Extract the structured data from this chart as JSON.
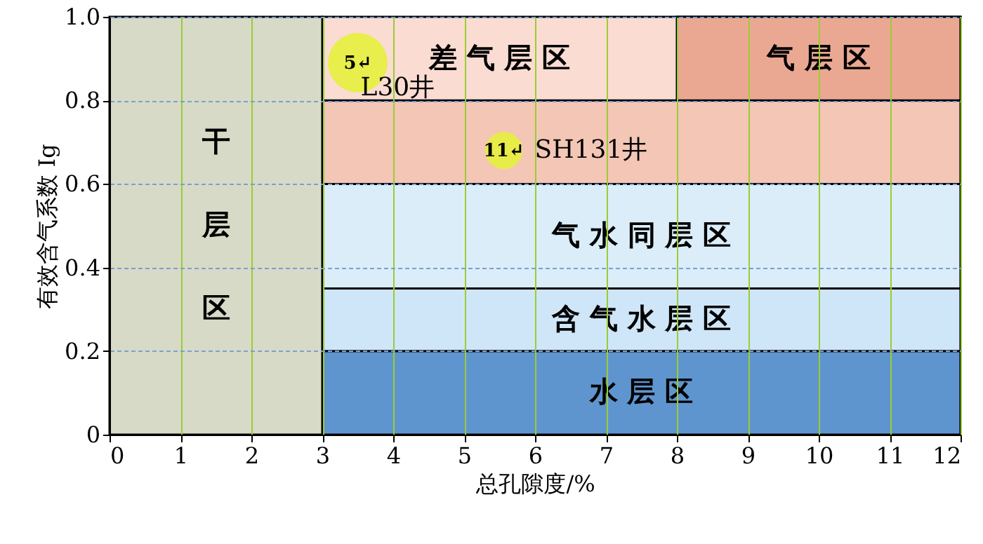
{
  "chart_data": {
    "type": "scatter",
    "xlabel": "总孔隙度/%",
    "ylabel": "有效含气系数 Ig",
    "xlim": [
      0,
      12
    ],
    "xticks": [
      0,
      1,
      2,
      3,
      4,
      5,
      6,
      7,
      8,
      9,
      10,
      11,
      12
    ],
    "ylim": [
      0,
      1.0
    ],
    "yticks": [
      0,
      {
        "value": 0.2,
        "label": "0.2"
      },
      {
        "value": 0.4,
        "label": "0.4"
      },
      {
        "value": 0.6,
        "label": "0.6"
      },
      {
        "value": 0.8,
        "label": "0.8"
      },
      {
        "value": 1.0,
        "label": "1.0"
      }
    ],
    "grid": true,
    "marker": "circle",
    "bands": [
      {
        "axis": "y",
        "from": 0,
        "to": 0.2,
        "label": "水  层  区",
        "color": "#5f95cf"
      },
      {
        "axis": "y",
        "from": 0.2,
        "to": 0.35,
        "label": "含 气 水 层 区",
        "color": "#cfe6f8"
      },
      {
        "axis": "y",
        "from": 0.35,
        "to": 0.6,
        "label": "气 水 同 层 区",
        "color": "#dcedfa"
      },
      {
        "axis": "y",
        "from": 0.6,
        "to": 0.8,
        "color": "#f3c6b6"
      },
      {
        "axis": "y",
        "from": 0.8,
        "to": 1.0,
        "label": "差 气 层 区",
        "color": "#fadcd2"
      },
      {
        "axis": "x",
        "from": 8,
        "to": 12,
        "label": "气 层 区",
        "color": "#eaa892"
      },
      {
        "axis": "x",
        "from": 0,
        "to": 3,
        "label": "干层区",
        "color": "#d7dac6"
      }
    ],
    "series": [
      {
        "name": "L30井",
        "color": "#e6f03c",
        "x": [
          3.5
        ],
        "values": [
          0.89
        ]
      },
      {
        "name": "SH131井",
        "color": "#e6f03c",
        "x": [
          5.56
        ],
        "values": [
          0.68
        ]
      }
    ],
    "annotations": [
      {
        "text": "5↵",
        "x": 3.5,
        "y": 0.89
      },
      {
        "text": "11↵",
        "x": 5.56,
        "y": 0.68
      }
    ]
  }
}
